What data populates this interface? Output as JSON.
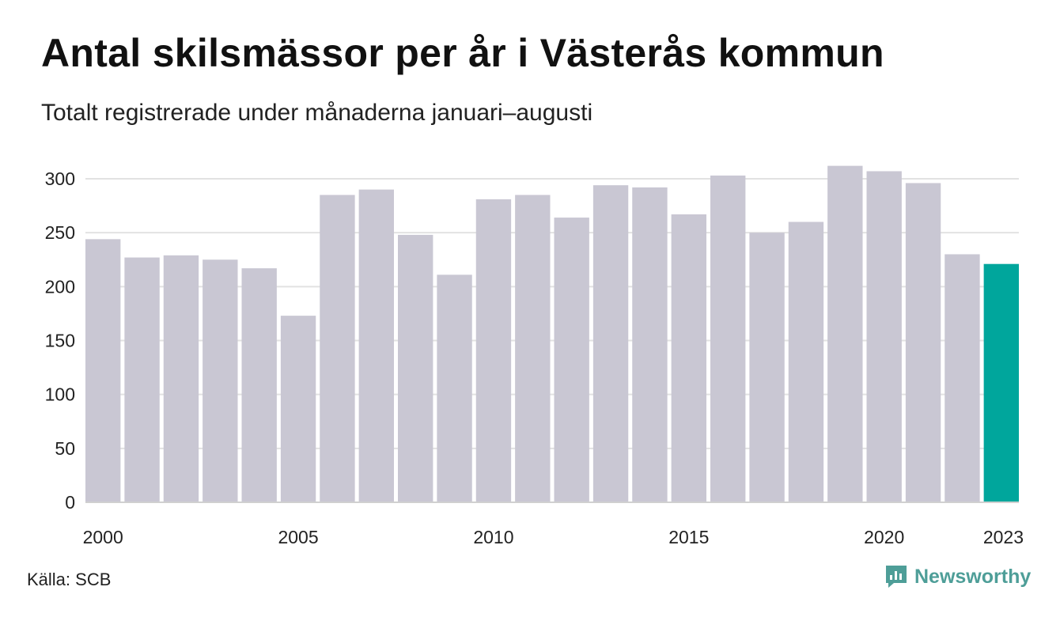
{
  "header": {
    "title": "Antal skilsmässor per år i Västerås kommun",
    "subtitle": "Totalt registrerade under månaderna januari–augusti"
  },
  "footer": {
    "source": "Källa: SCB",
    "brand": "Newsworthy",
    "brand_icon": "newsworthy-logo-icon"
  },
  "colors": {
    "bar": "#c9c7d3",
    "highlight": "#00a69c",
    "grid": "#e2e2e2",
    "axis": "#d0d0d0",
    "brand": "#4e9e98"
  },
  "chart_data": {
    "type": "bar",
    "title": "Antal skilsmässor per år i Västerås kommun",
    "subtitle": "Totalt registrerade under månaderna januari–augusti",
    "xlabel": "",
    "ylabel": "",
    "categories": [
      2000,
      2001,
      2002,
      2003,
      2004,
      2005,
      2006,
      2007,
      2008,
      2009,
      2010,
      2011,
      2012,
      2013,
      2014,
      2015,
      2016,
      2017,
      2018,
      2019,
      2020,
      2021,
      2022,
      2023
    ],
    "values": [
      244,
      227,
      229,
      225,
      217,
      173,
      285,
      290,
      248,
      211,
      281,
      285,
      264,
      294,
      292,
      267,
      303,
      250,
      260,
      312,
      307,
      296,
      230,
      221
    ],
    "highlight_category": 2023,
    "x_tick_labels": [
      "2000",
      "2005",
      "2010",
      "2015",
      "2020",
      "2023"
    ],
    "y_ticks": [
      0,
      50,
      100,
      150,
      200,
      250,
      300
    ],
    "ylim": [
      0,
      300
    ],
    "grid": true,
    "legend": "none"
  }
}
